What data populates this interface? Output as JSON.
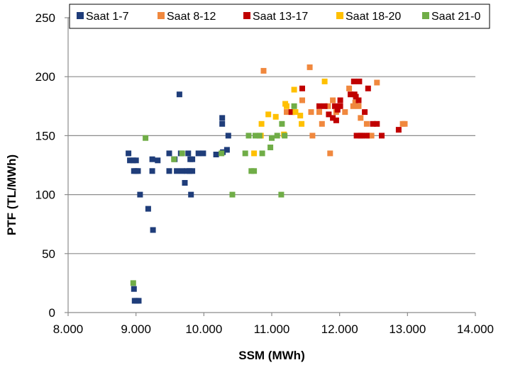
{
  "chart_data": {
    "type": "scatter",
    "title": "",
    "xlabel": "SSM (MWh)",
    "ylabel": "PTF (TL/MWh)",
    "xlim": [
      8000,
      14000
    ],
    "ylim": [
      0,
      250
    ],
    "x_ticks": [
      {
        "value": 8000,
        "label": "8.000"
      },
      {
        "value": 9000,
        "label": "9.000"
      },
      {
        "value": 10000,
        "label": "10.000"
      },
      {
        "value": 11000,
        "label": "11.000"
      },
      {
        "value": 12000,
        "label": "12.000"
      },
      {
        "value": 13000,
        "label": "13.000"
      },
      {
        "value": 14000,
        "label": "14.000"
      }
    ],
    "y_ticks": [
      {
        "value": 0,
        "label": "0"
      },
      {
        "value": 50,
        "label": "50"
      },
      {
        "value": 100,
        "label": "100"
      },
      {
        "value": 150,
        "label": "150"
      },
      {
        "value": 200,
        "label": "200"
      },
      {
        "value": 250,
        "label": "250"
      }
    ],
    "grid": "horizontal",
    "legend_position": "top",
    "series": [
      {
        "name": "Saat 1-7",
        "color": "#1f3d7a",
        "points": [
          [
            8890,
            135
          ],
          [
            8910,
            129
          ],
          [
            8960,
            129
          ],
          [
            8970,
            120
          ],
          [
            9000,
            129
          ],
          [
            9000,
            120
          ],
          [
            9030,
            120
          ],
          [
            8970,
            20
          ],
          [
            8980,
            10
          ],
          [
            9010,
            10
          ],
          [
            9040,
            10
          ],
          [
            9060,
            100
          ],
          [
            9180,
            88
          ],
          [
            9240,
            130
          ],
          [
            9240,
            120
          ],
          [
            9250,
            70
          ],
          [
            9320,
            129
          ],
          [
            9490,
            135
          ],
          [
            9490,
            120
          ],
          [
            9570,
            130
          ],
          [
            9600,
            120
          ],
          [
            9640,
            185
          ],
          [
            9660,
            135
          ],
          [
            9680,
            120
          ],
          [
            9720,
            110
          ],
          [
            9750,
            120
          ],
          [
            9770,
            135
          ],
          [
            9790,
            120
          ],
          [
            9800,
            130
          ],
          [
            9810,
            100
          ],
          [
            9830,
            120
          ],
          [
            9830,
            130
          ],
          [
            9920,
            135
          ],
          [
            9990,
            135
          ],
          [
            10180,
            134
          ],
          [
            10270,
            160
          ],
          [
            10270,
            165
          ],
          [
            10280,
            136
          ],
          [
            10340,
            138
          ],
          [
            10360,
            150
          ]
        ]
      },
      {
        "name": "Saat 8-12",
        "color": "#f0883e",
        "points": [
          [
            10880,
            205
          ],
          [
            11220,
            170
          ],
          [
            11300,
            170
          ],
          [
            11450,
            180
          ],
          [
            11560,
            208
          ],
          [
            11580,
            170
          ],
          [
            11600,
            150
          ],
          [
            11700,
            170
          ],
          [
            11740,
            160
          ],
          [
            11830,
            175
          ],
          [
            11860,
            135
          ],
          [
            11900,
            180
          ],
          [
            11950,
            170
          ],
          [
            12080,
            170
          ],
          [
            12140,
            190
          ],
          [
            12200,
            175
          ],
          [
            12230,
            178
          ],
          [
            12280,
            175
          ],
          [
            12310,
            165
          ],
          [
            12400,
            160
          ],
          [
            12430,
            150
          ],
          [
            12470,
            150
          ],
          [
            12550,
            195
          ],
          [
            12930,
            160
          ],
          [
            12960,
            160
          ]
        ]
      },
      {
        "name": "Saat 13-17",
        "color": "#c00000",
        "points": [
          [
            11290,
            170
          ],
          [
            11450,
            190
          ],
          [
            11700,
            175
          ],
          [
            11780,
            175
          ],
          [
            11840,
            168
          ],
          [
            11900,
            165
          ],
          [
            11930,
            175
          ],
          [
            11950,
            163
          ],
          [
            11970,
            172
          ],
          [
            12010,
            180
          ],
          [
            12010,
            175
          ],
          [
            12160,
            185
          ],
          [
            12210,
            196
          ],
          [
            12220,
            185
          ],
          [
            12240,
            183
          ],
          [
            12250,
            150
          ],
          [
            12280,
            180
          ],
          [
            12290,
            196
          ],
          [
            12310,
            150
          ],
          [
            12330,
            150
          ],
          [
            12370,
            170
          ],
          [
            12400,
            150
          ],
          [
            12420,
            190
          ],
          [
            12490,
            160
          ],
          [
            12550,
            160
          ],
          [
            12620,
            150
          ],
          [
            12870,
            155
          ]
        ]
      },
      {
        "name": "Saat 18-20",
        "color": "#ffc000",
        "points": [
          [
            10740,
            135
          ],
          [
            10840,
            150
          ],
          [
            10850,
            160
          ],
          [
            10950,
            168
          ],
          [
            11060,
            166
          ],
          [
            11180,
            151
          ],
          [
            11200,
            177
          ],
          [
            11220,
            175
          ],
          [
            11330,
            189
          ],
          [
            11350,
            170
          ],
          [
            11420,
            167
          ],
          [
            11440,
            160
          ],
          [
            11780,
            196
          ]
        ]
      },
      {
        "name": "Saat 21-0",
        "color": "#70ad47",
        "points": [
          [
            8960,
            25
          ],
          [
            9140,
            148
          ],
          [
            9560,
            130
          ],
          [
            9680,
            135
          ],
          [
            10260,
            135
          ],
          [
            10420,
            100
          ],
          [
            10610,
            135
          ],
          [
            10660,
            150
          ],
          [
            10700,
            120
          ],
          [
            10740,
            120
          ],
          [
            10760,
            150
          ],
          [
            10820,
            150
          ],
          [
            10860,
            135
          ],
          [
            10980,
            140
          ],
          [
            11000,
            148
          ],
          [
            11080,
            150
          ],
          [
            11140,
            100
          ],
          [
            11150,
            160
          ],
          [
            11190,
            150
          ],
          [
            11330,
            175
          ]
        ]
      }
    ]
  }
}
